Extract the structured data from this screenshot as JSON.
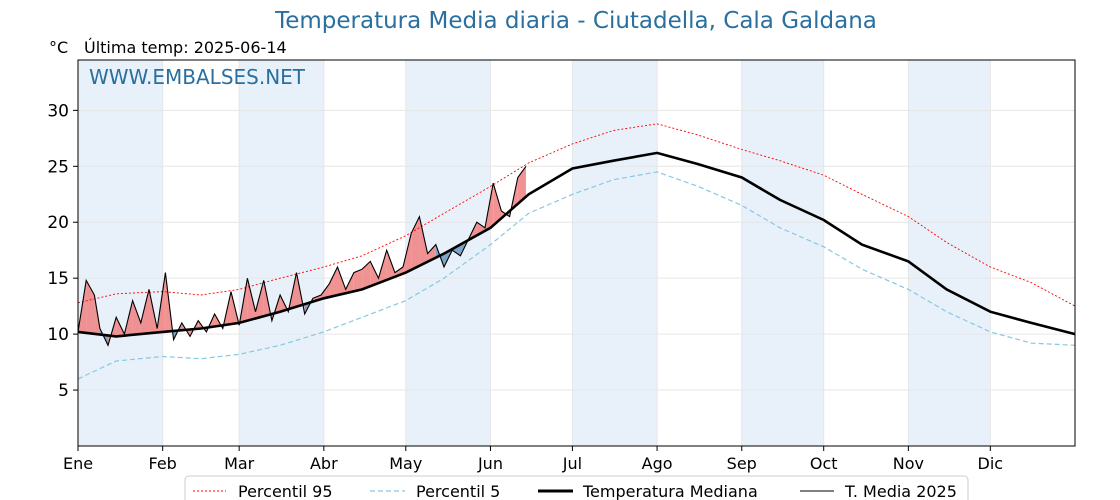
{
  "title": "Temperatura Media diaria - Ciutadella, Cala Galdana",
  "unit": "°C",
  "last_temp_label": "Última temp: 2025-06-14",
  "watermark": "WWW.EMBALSES.NET",
  "colors": {
    "title": "#2a6f9e",
    "p95": "#ff0000",
    "p5": "#88c8e0",
    "median": "#000000",
    "current": "#000000",
    "fill_above": "#f08080",
    "fill_below": "#6a96bc",
    "band": "#e8f1fa"
  },
  "legend": {
    "p95": "Percentil 95",
    "p5": "Percentil 5",
    "median": "Temperatura Mediana",
    "current": "T. Media 2025"
  },
  "chart_data": {
    "type": "line",
    "title": "Temperatura Media diaria - Ciutadella, Cala Galdana",
    "ylabel": "°C",
    "ylim": [
      0,
      34.5
    ],
    "yticks": [
      5,
      10,
      15,
      20,
      25,
      30
    ],
    "xlim": [
      1,
      366
    ],
    "x_tick_labels": [
      "Ene",
      "Feb",
      "Mar",
      "Abr",
      "May",
      "Jun",
      "Jul",
      "Ago",
      "Sep",
      "Oct",
      "Nov",
      "Dic"
    ],
    "x_tick_days": [
      1,
      32,
      60,
      91,
      121,
      152,
      182,
      213,
      244,
      274,
      305,
      335
    ],
    "series": [
      {
        "name": "Percentil 95",
        "x": [
          1,
          15,
          32,
          46,
          60,
          75,
          91,
          105,
          121,
          135,
          152,
          166,
          182,
          197,
          213,
          228,
          244,
          258,
          274,
          288,
          305,
          319,
          335,
          350,
          366
        ],
        "values": [
          12.8,
          13.6,
          13.8,
          13.5,
          14.0,
          15.0,
          16.0,
          17.0,
          18.8,
          20.8,
          23.2,
          25.3,
          27.0,
          28.2,
          28.8,
          27.8,
          26.5,
          25.5,
          24.2,
          22.5,
          20.5,
          18.2,
          16.0,
          14.6,
          12.5
        ]
      },
      {
        "name": "Percentil 5",
        "x": [
          1,
          15,
          32,
          46,
          60,
          75,
          91,
          105,
          121,
          135,
          152,
          166,
          182,
          197,
          213,
          228,
          244,
          258,
          274,
          288,
          305,
          319,
          335,
          350,
          366
        ],
        "values": [
          6.0,
          7.6,
          8.0,
          7.8,
          8.2,
          9.0,
          10.2,
          11.5,
          13.0,
          15.0,
          18.0,
          20.8,
          22.5,
          23.8,
          24.5,
          23.2,
          21.5,
          19.5,
          17.8,
          15.8,
          14.0,
          12.0,
          10.2,
          9.2,
          9.0
        ]
      },
      {
        "name": "Temperatura Mediana",
        "x": [
          1,
          15,
          32,
          46,
          60,
          75,
          91,
          105,
          121,
          135,
          152,
          166,
          182,
          197,
          213,
          228,
          244,
          258,
          274,
          288,
          305,
          319,
          335,
          350,
          366
        ],
        "values": [
          10.2,
          9.8,
          10.2,
          10.5,
          11.0,
          12.0,
          13.2,
          14.0,
          15.5,
          17.2,
          19.5,
          22.5,
          24.8,
          25.5,
          26.2,
          25.2,
          24.0,
          22.0,
          20.2,
          18.0,
          16.5,
          14.0,
          12.0,
          11.0,
          10.0
        ]
      },
      {
        "name": "T. Media 2025",
        "x": [
          1,
          4,
          7,
          9,
          12,
          15,
          18,
          21,
          24,
          27,
          30,
          33,
          36,
          39,
          42,
          45,
          48,
          51,
          54,
          57,
          60,
          63,
          66,
          69,
          72,
          75,
          78,
          81,
          84,
          87,
          90,
          93,
          96,
          99,
          102,
          105,
          108,
          111,
          114,
          117,
          120,
          123,
          126,
          129,
          132,
          135,
          138,
          141,
          144,
          147,
          150,
          153,
          156,
          159,
          162,
          165
        ],
        "values": [
          10.2,
          14.8,
          13.5,
          10.5,
          9.0,
          11.5,
          10.0,
          13.0,
          11.0,
          14.0,
          10.5,
          15.5,
          9.5,
          11.0,
          9.8,
          11.2,
          10.2,
          11.8,
          10.5,
          13.8,
          10.8,
          15.0,
          12.0,
          14.8,
          11.2,
          13.5,
          12.0,
          15.5,
          11.8,
          13.2,
          13.5,
          14.5,
          16.0,
          14.0,
          15.5,
          15.8,
          16.5,
          15.0,
          17.5,
          15.5,
          16.0,
          19.0,
          20.5,
          17.2,
          18.0,
          16.0,
          17.5,
          17.0,
          18.5,
          20.0,
          19.5,
          23.5,
          21.0,
          20.5,
          24.0,
          25.0
        ]
      }
    ]
  }
}
